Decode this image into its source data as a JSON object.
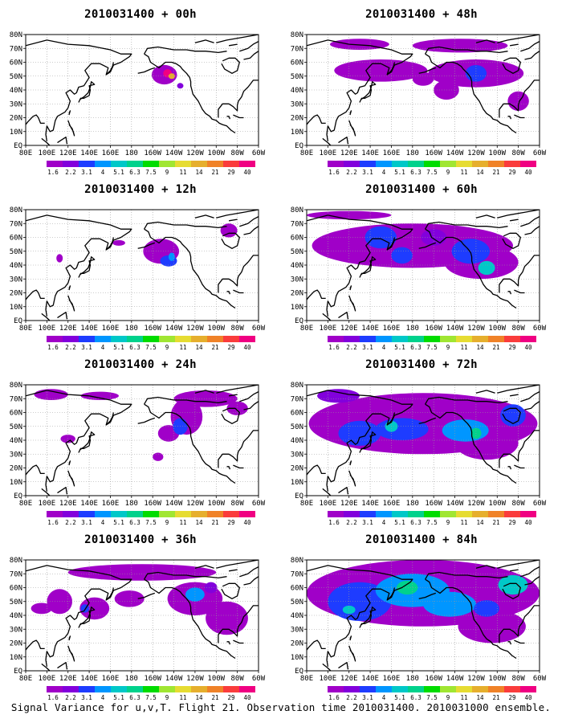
{
  "figure": {
    "footer": "Signal Variance for u,v,T. Flight 21. Observation time 2010031400. 2010031000 ensemble.",
    "x_tick_labels": [
      "80E",
      "100E",
      "120E",
      "140E",
      "160E",
      "180",
      "160W",
      "140W",
      "120W",
      "100W",
      "80W",
      "60W"
    ],
    "y_tick_labels": [
      "EQ",
      "10N",
      "20N",
      "30N",
      "40N",
      "50N",
      "60N",
      "70N",
      "80N"
    ],
    "colorbar": {
      "labels": [
        "1.6",
        "2.2",
        "3.1",
        "4",
        "5.1",
        "6.3",
        "7.5",
        "9",
        "11",
        "14",
        "21",
        "29",
        "40"
      ],
      "colors": [
        "#a000c8",
        "#8200dc",
        "#1e3cff",
        "#0096ff",
        "#00c8c8",
        "#00d28c",
        "#00dc00",
        "#a0e632",
        "#e6dc32",
        "#e6af2d",
        "#f08228",
        "#fa3c3c",
        "#f00082"
      ]
    },
    "continent_color": "#000000",
    "grid_color": "#9a9a9a"
  },
  "panels": [
    {
      "title": "2010031400 + 00h",
      "forecast_hour": 0,
      "max_level_index": 12
    },
    {
      "title": "2010031400 + 48h",
      "forecast_hour": 48,
      "max_level_index": 4
    },
    {
      "title": "2010031400 + 12h",
      "forecast_hour": 12,
      "max_level_index": 3
    },
    {
      "title": "2010031400 + 60h",
      "forecast_hour": 60,
      "max_level_index": 4
    },
    {
      "title": "2010031400 + 24h",
      "forecast_hour": 24,
      "max_level_index": 3
    },
    {
      "title": "2010031400 + 72h",
      "forecast_hour": 72,
      "max_level_index": 5
    },
    {
      "title": "2010031400 + 36h",
      "forecast_hour": 36,
      "max_level_index": 3
    },
    {
      "title": "2010031400 + 84h",
      "forecast_hour": 84,
      "max_level_index": 5
    }
  ]
}
